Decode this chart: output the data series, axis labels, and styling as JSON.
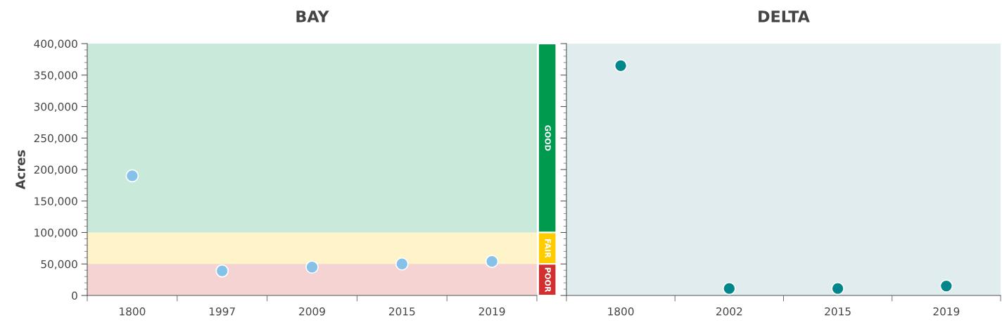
{
  "chart_data": [
    {
      "type": "scatter",
      "title": "BAY",
      "ylabel": "Acres",
      "categories": [
        "1800",
        "1997",
        "2009",
        "2015",
        "2019"
      ],
      "series": [
        {
          "color": "#85c1e9",
          "values": [
            190000,
            39000,
            45000,
            50000,
            54000
          ]
        }
      ],
      "ylim": [
        0,
        400000
      ],
      "yticks": [
        {
          "value": 0,
          "label": "0"
        },
        {
          "value": 50000,
          "label": "50,000"
        },
        {
          "value": 100000,
          "label": "100,000"
        },
        {
          "value": 150000,
          "label": "150,000"
        },
        {
          "value": 200000,
          "label": "200,000"
        },
        {
          "value": 250000,
          "label": "250,000"
        },
        {
          "value": 300000,
          "label": "300,000"
        },
        {
          "value": 350000,
          "label": "350,000"
        },
        {
          "value": 400000,
          "label": "400,000"
        }
      ],
      "bands": [
        {
          "axis": "y",
          "from": 100000,
          "to": 400000,
          "label": "GOOD",
          "color": "#009a4e"
        },
        {
          "axis": "y",
          "from": 50000,
          "to": 100000,
          "label": "FAIR",
          "color": "#ffcc00"
        },
        {
          "axis": "y",
          "from": 0,
          "to": 50000,
          "label": "POOR",
          "color": "#d32f2f"
        }
      ],
      "marker": "circle",
      "grid": false,
      "legend": false
    },
    {
      "type": "scatter",
      "title": "DELTA",
      "categories": [
        "1800",
        "2002",
        "2015",
        "2019"
      ],
      "series": [
        {
          "color": "#00868b",
          "values": [
            365000,
            11000,
            11000,
            15000
          ]
        }
      ],
      "ylim": [
        0,
        400000
      ],
      "tick_labels": "x",
      "marker": "circle",
      "grid": false,
      "legend": false
    }
  ]
}
